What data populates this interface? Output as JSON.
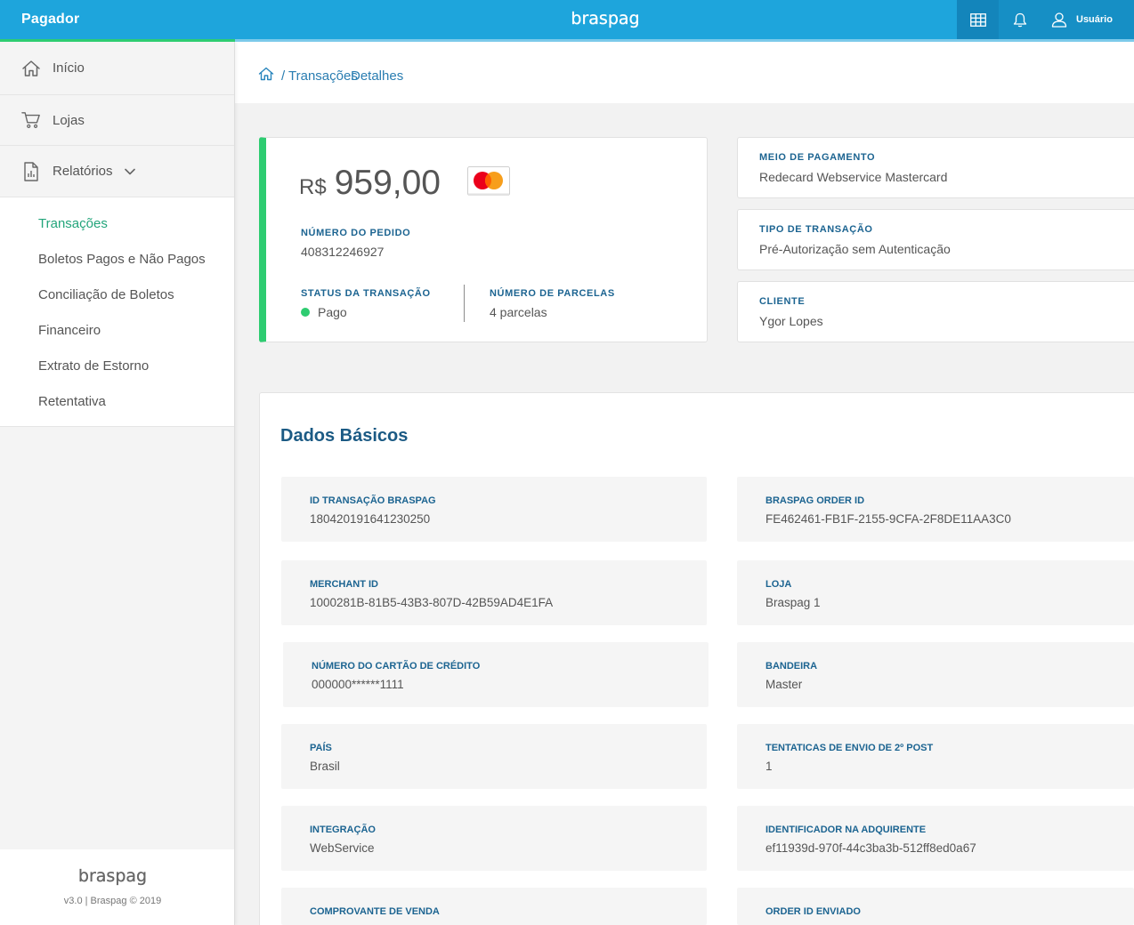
{
  "theme": {
    "header_blue": "#1ea5dc",
    "header_dark": "#168fc5",
    "accent_green": "#2ecc71",
    "label_blue": "#1c6491",
    "title_blue": "#1b5a84",
    "active_link": "#23a57b",
    "link_blue": "#2a7db1"
  },
  "header": {
    "app_title": "Pagador",
    "logo": "braspag",
    "tools": {
      "grid_icon": "grid-icon",
      "notifications_icon": "bell-icon",
      "user_icon": "user-icon",
      "user_label": "Usuário"
    }
  },
  "sidebar": {
    "nav": [
      {
        "label": "Início",
        "icon": "home-icon"
      },
      {
        "label": "Lojas",
        "icon": "cart-icon"
      },
      {
        "label": "Relatórios",
        "icon": "report-icon",
        "expanded": true
      }
    ],
    "submenu": [
      {
        "label": "Transações",
        "active": true
      },
      {
        "label": "Boletos Pagos e Não Pagos"
      },
      {
        "label": "Conciliação de Boletos"
      },
      {
        "label": "Financeiro"
      },
      {
        "label": "Extrato de Estorno"
      },
      {
        "label": "Retentativa"
      }
    ],
    "footer": {
      "logo": "braspag",
      "version": "v3.0 | Braspag © 2019"
    }
  },
  "breadcrumb": {
    "home_icon": "home-icon",
    "separator": "/",
    "items": [
      "Transações",
      "Detalhes"
    ]
  },
  "summary": {
    "currency": "R$",
    "amount": "959,00",
    "card_brand_icon": "mastercard-icon",
    "order": {
      "label": "NÚMERO DO PEDIDO",
      "value": "408312246927"
    },
    "status": {
      "label": "STATUS DA TRANSAÇÃO",
      "value": "Pago",
      "color": "#2ecc71"
    },
    "installments": {
      "label": "NÚMERO DE PARCELAS",
      "value": "4 parcelas"
    }
  },
  "info_cards": [
    {
      "label": "MEIO DE PAGAMENTO",
      "value": "Redecard Webservice Mastercard"
    },
    {
      "label": "TIPO DE TRANSAÇÃO",
      "value": "Pré-Autorização sem Autenticação"
    },
    {
      "label": "CLIENTE",
      "value": "Ygor Lopes"
    }
  ],
  "basic_data": {
    "title": "Dados Básicos",
    "fields": [
      {
        "label": "ID TRANSAÇÃO BRASPAG",
        "value": "180420191641230250"
      },
      {
        "label": "BRASPAG ORDER ID",
        "value": "FE462461-FB1F-2155-9CFA-2F8DE11AA3C0"
      },
      {
        "label": "MERCHANT ID",
        "value": "1000281B-81B5-43B3-807D-42B59AD4E1FA"
      },
      {
        "label": "LOJA",
        "value": "Braspag 1"
      },
      {
        "label": "NÚMERO DO CARTÃO DE CRÉDITO",
        "value": "000000******1111"
      },
      {
        "label": "BANDEIRA",
        "value": "Master"
      },
      {
        "label": "PAÍS",
        "value": "Brasil"
      },
      {
        "label": "TENTATICAS DE ENVIO DE 2º POST",
        "value": "1"
      },
      {
        "label": "INTEGRAÇÃO",
        "value": "WebService"
      },
      {
        "label": "IDENTIFICADOR NA ADQUIRENTE",
        "value": "ef11939d-970f-44c3ba3b-512ff8ed0a67"
      },
      {
        "label": "COMPROVANTE DE VENDA"
      },
      {
        "label": "ORDER ID ENVIADO"
      }
    ]
  }
}
